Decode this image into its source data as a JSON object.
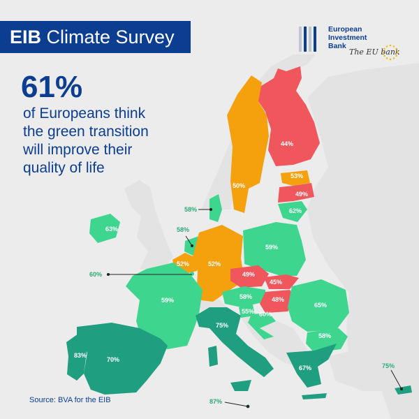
{
  "title": {
    "bold": "EIB",
    "rest": " Climate Survey"
  },
  "logo": {
    "name_lines": [
      "European",
      "Investment",
      "Bank"
    ],
    "script": "The EU bank"
  },
  "headline": {
    "value": "61%"
  },
  "subline": {
    "lines": [
      "of Europeans think",
      "the green transition",
      "will improve their",
      "quality of life"
    ]
  },
  "source": "Source: BVA for the EIB",
  "colors": {
    "background": "#ececec",
    "non_eu": "#e3e3e3",
    "water": "#ececec",
    "light_green": "#3ed68e",
    "dark_green": "#1f9e80",
    "orange": "#f5a00d",
    "red": "#f0575c",
    "title_blue": "#0b3d91"
  },
  "countries": [
    {
      "id": "finland",
      "value": "44%",
      "color": "red"
    },
    {
      "id": "sweden",
      "value": "50%",
      "color": "orange"
    },
    {
      "id": "estonia",
      "value": "53%",
      "color": "orange"
    },
    {
      "id": "latvia",
      "value": "49%",
      "color": "red"
    },
    {
      "id": "lithuania",
      "value": "62%",
      "color": "light_green"
    },
    {
      "id": "denmark",
      "value": "58%",
      "color": "light_green"
    },
    {
      "id": "ireland",
      "value": "63%",
      "color": "light_green"
    },
    {
      "id": "netherlands",
      "value": "58%",
      "color": "light_green"
    },
    {
      "id": "belgium",
      "value": "52%",
      "color": "orange"
    },
    {
      "id": "luxembourg",
      "value": "60%",
      "color": "light_green"
    },
    {
      "id": "germany",
      "value": "52%",
      "color": "orange"
    },
    {
      "id": "poland",
      "value": "59%",
      "color": "light_green"
    },
    {
      "id": "czechia",
      "value": "49%",
      "color": "red"
    },
    {
      "id": "slovakia",
      "value": "45%",
      "color": "red"
    },
    {
      "id": "austria",
      "value": "58%",
      "color": "light_green"
    },
    {
      "id": "hungary",
      "value": "48%",
      "color": "red"
    },
    {
      "id": "slovenia",
      "value": "55%",
      "color": "light_green"
    },
    {
      "id": "croatia",
      "value": "60%",
      "color": "light_green"
    },
    {
      "id": "romania",
      "value": "65%",
      "color": "light_green"
    },
    {
      "id": "bulgaria",
      "value": "58%",
      "color": "light_green"
    },
    {
      "id": "france",
      "value": "59%",
      "color": "light_green"
    },
    {
      "id": "italy",
      "value": "75%",
      "color": "dark_green"
    },
    {
      "id": "spain",
      "value": "70%",
      "color": "dark_green"
    },
    {
      "id": "portugal",
      "value": "83%",
      "color": "dark_green"
    },
    {
      "id": "greece",
      "value": "67%",
      "color": "dark_green"
    },
    {
      "id": "cyprus",
      "value": "75%",
      "color": "dark_green"
    },
    {
      "id": "malta",
      "value": "87%",
      "color": "dark_green"
    }
  ]
}
